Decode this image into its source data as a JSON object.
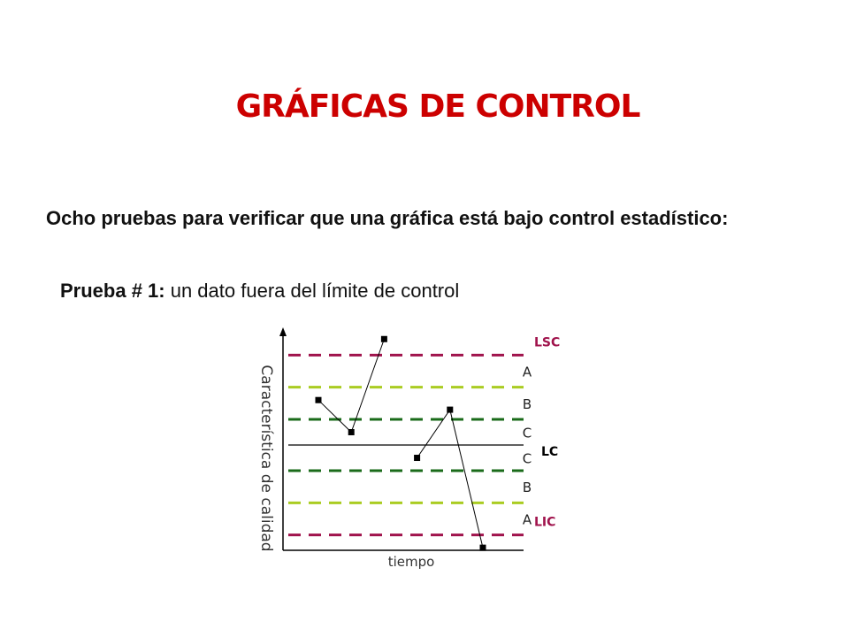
{
  "slide": {
    "title": "GRÁFICAS DE CONTROL",
    "intro": "Ocho pruebas para verificar que una gráfica está bajo control estadístico:",
    "test_label": "Prueba # 1:",
    "test_text": " un dato fuera del límite de control"
  },
  "chart_data": {
    "type": "line",
    "title": "",
    "xlabel": "tiempo",
    "ylabel": "Característica de calidad",
    "ylim": [
      -3.5,
      3.5
    ],
    "series": [
      {
        "values": [
          {
            "x": 1,
            "y": 1.4
          },
          {
            "x": 2,
            "y": 0.4
          },
          {
            "x": 3,
            "y": 3.3
          },
          {
            "x": 4,
            "y": -0.4
          },
          {
            "x": 5,
            "y": 1.1
          },
          {
            "x": 6,
            "y": -3.2
          }
        ],
        "segments": [
          [
            0,
            1,
            2
          ],
          [
            3,
            4,
            5
          ]
        ]
      }
    ],
    "control_lines": [
      {
        "label": "LSC",
        "y": 2.8,
        "style": "dashed",
        "color": "#a0134c"
      },
      {
        "label": "",
        "y": 1.8,
        "style": "dashed",
        "color": "#aacc22"
      },
      {
        "label": "",
        "y": 0.8,
        "style": "dashed",
        "color": "#1a6b1a"
      },
      {
        "label": "LC",
        "y": 0,
        "style": "solid",
        "color": "#000000"
      },
      {
        "label": "",
        "y": -0.8,
        "style": "dashed",
        "color": "#1a6b1a"
      },
      {
        "label": "",
        "y": -1.8,
        "style": "dashed",
        "color": "#aacc22"
      },
      {
        "label": "LIC",
        "y": -2.8,
        "style": "dashed",
        "color": "#a0134c"
      }
    ],
    "zones": [
      {
        "label": "A",
        "y": 2.3
      },
      {
        "label": "B",
        "y": 1.3
      },
      {
        "label": "C",
        "y": 0.4
      },
      {
        "label": "C",
        "y": -0.4
      },
      {
        "label": "B",
        "y": -1.3
      },
      {
        "label": "A",
        "y": -2.3
      }
    ],
    "colors": {
      "limit_label": "#a0134c",
      "center_label": "#000000",
      "zone_label": "#222222",
      "point": "#000000"
    }
  }
}
